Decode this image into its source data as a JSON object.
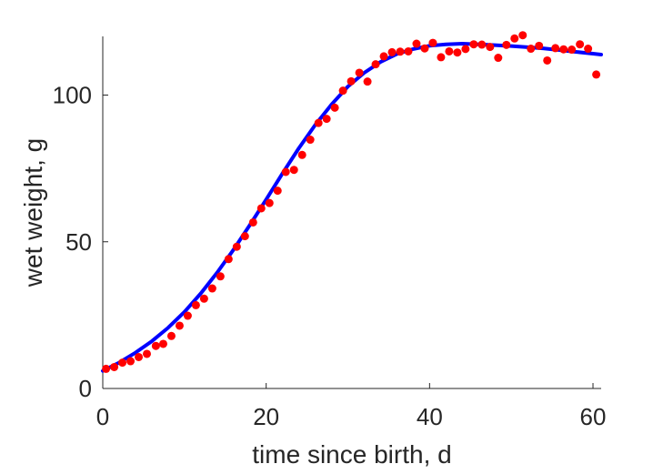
{
  "chart_data": {
    "type": "scatter",
    "xlabel": "time since birth, d",
    "ylabel": "wet weight, g",
    "xlim": [
      0,
      61
    ],
    "ylim": [
      0,
      120
    ],
    "xticks": [
      "0",
      "20",
      "40",
      "60"
    ],
    "yticks": [
      "0",
      "50",
      "100"
    ],
    "grid": false,
    "legend": "none",
    "series": [
      {
        "kind": "points",
        "color": "#ff0000",
        "x": [
          0.4,
          1.4,
          2.4,
          3.4,
          4.4,
          5.4,
          6.5,
          7.4,
          8.4,
          9.4,
          10.4,
          11.4,
          12.4,
          13.4,
          14.4,
          15.4,
          16.4,
          17.4,
          18.4,
          19.4,
          20.4,
          21.4,
          22.4,
          23.4,
          24.4,
          25.4,
          26.4,
          27.4,
          28.4,
          29.4,
          30.4,
          31.4,
          32.4,
          33.4,
          34.4,
          35.4,
          36.4,
          37.4,
          38.4,
          39.4,
          40.4,
          41.4,
          42.4,
          43.4,
          44.4,
          45.4,
          46.4,
          47.4,
          48.4,
          49.4,
          50.4,
          51.4,
          52.4,
          53.4,
          54.4,
          55.4,
          56.4,
          57.4,
          58.4,
          59.4,
          60.4
        ],
        "y": [
          6.7,
          7.3,
          8.8,
          9.3,
          10.7,
          11.8,
          14.5,
          15.2,
          17.9,
          21.4,
          24.8,
          28.4,
          30.6,
          34.1,
          38.2,
          44.1,
          48.3,
          51.9,
          56.6,
          61.4,
          63.2,
          67.4,
          73.8,
          74.5,
          79.6,
          84.8,
          90.5,
          91.9,
          95.7,
          101.5,
          104.7,
          107.6,
          104.6,
          110.5,
          113.2,
          114.6,
          114.8,
          114.9,
          117.5,
          115.9,
          117.8,
          112.9,
          114.9,
          114.5,
          115.7,
          117.3,
          117.2,
          116.4,
          112.7,
          117.1,
          119.3,
          120.4,
          115.8,
          116.8,
          111.8,
          116.0,
          115.6,
          115.5,
          117.3,
          115.8,
          107.0
        ]
      },
      {
        "kind": "line",
        "color": "#0000ff",
        "x": [
          0,
          2,
          4,
          6,
          8,
          10,
          12,
          14,
          16,
          18,
          20,
          22,
          24,
          26,
          28,
          30,
          32,
          34,
          36,
          38,
          40,
          42,
          44,
          46,
          48,
          50,
          52,
          54,
          56,
          58,
          60,
          61
        ],
        "y": [
          6.0,
          8.8,
          12.2,
          16.1,
          20.7,
          26.1,
          32.4,
          39.5,
          47.3,
          55.7,
          64.4,
          73.3,
          81.9,
          89.8,
          96.8,
          102.9,
          107.6,
          111.3,
          114.0,
          115.7,
          116.8,
          117.3,
          117.5,
          117.3,
          117.0,
          116.7,
          116.3,
          115.9,
          115.3,
          114.7,
          114.1,
          113.8
        ]
      }
    ]
  }
}
